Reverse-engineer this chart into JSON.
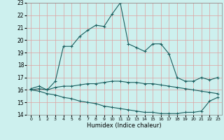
{
  "title": "",
  "xlabel": "Humidex (Indice chaleur)",
  "xlim": [
    -0.5,
    23.5
  ],
  "ylim": [
    14,
    23
  ],
  "yticks": [
    14,
    15,
    16,
    17,
    18,
    19,
    20,
    21,
    22,
    23
  ],
  "xticks": [
    0,
    1,
    2,
    3,
    4,
    5,
    6,
    7,
    8,
    9,
    10,
    11,
    12,
    13,
    14,
    15,
    16,
    17,
    18,
    19,
    20,
    21,
    22,
    23
  ],
  "bg_color": "#cdf0ee",
  "grid_color": "#dda0a0",
  "line_color": "#1a5f5f",
  "series": {
    "line1_x": [
      0,
      1,
      2,
      3,
      4,
      5,
      6,
      7,
      8,
      9,
      10,
      11,
      12,
      13,
      14,
      15,
      16,
      17,
      18,
      19,
      20,
      21,
      22,
      23
    ],
    "line1_y": [
      16.1,
      16.3,
      16.0,
      16.7,
      19.5,
      19.5,
      20.3,
      20.8,
      21.2,
      21.1,
      22.1,
      23.0,
      19.7,
      19.4,
      19.1,
      19.7,
      19.7,
      18.9,
      17.0,
      16.7,
      16.7,
      17.0,
      16.8,
      17.0
    ],
    "line2_x": [
      0,
      1,
      2,
      3,
      4,
      5,
      6,
      7,
      8,
      9,
      10,
      11,
      12,
      13,
      14,
      15,
      16,
      17,
      18,
      19,
      20,
      21,
      22,
      23
    ],
    "line2_y": [
      16.0,
      16.1,
      16.0,
      16.2,
      16.3,
      16.3,
      16.4,
      16.5,
      16.5,
      16.6,
      16.7,
      16.7,
      16.6,
      16.6,
      16.5,
      16.5,
      16.4,
      16.3,
      16.2,
      16.1,
      16.0,
      15.9,
      15.8,
      15.7
    ],
    "line3_x": [
      0,
      1,
      2,
      3,
      4,
      5,
      6,
      7,
      8,
      9,
      10,
      11,
      12,
      13,
      14,
      15,
      16,
      17,
      18,
      19,
      20,
      21,
      22,
      23
    ],
    "line3_y": [
      16.0,
      15.9,
      15.7,
      15.6,
      15.4,
      15.3,
      15.1,
      15.0,
      14.9,
      14.7,
      14.6,
      14.5,
      14.4,
      14.3,
      14.2,
      14.2,
      14.1,
      14.1,
      14.1,
      14.2,
      14.2,
      14.3,
      15.1,
      15.4
    ]
  }
}
